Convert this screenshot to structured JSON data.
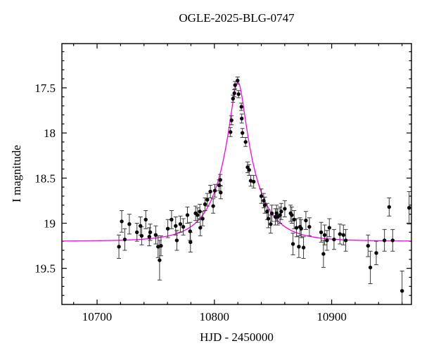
{
  "chart_data": {
    "type": "scatter",
    "title": "OGLE-2025-BLG-0747",
    "xlabel": "HJD - 2450000",
    "ylabel": "I magnitude",
    "x_range": [
      10670,
      10968
    ],
    "y_range_mag": [
      19.9,
      17.01
    ],
    "y_axis_inverted": true,
    "x_major_ticks": [
      10700,
      10800,
      10900
    ],
    "x_minor_tick_step": 20,
    "y_major_ticks": [
      17.5,
      18,
      18.5,
      19,
      19.5
    ],
    "y_minor_tick_step": 0.1,
    "grid": "off",
    "legend": "none",
    "colors": {
      "background": "#ffffff",
      "axes": "#000000",
      "data_points": "#0a0a0a",
      "error_bars": "#3c3c3c",
      "model_curve": "#ff00ee"
    },
    "model_curve": {
      "kind": "paczynski_microlensing",
      "t0": 10820,
      "tE_days": 29,
      "u0": 0.2,
      "baseline_mag": 19.2,
      "peak_mag": 17.42
    },
    "points_format": [
      "hjd_minus_2450000",
      "i_magnitude",
      "mag_error"
    ],
    "points": [
      [
        10718.6,
        19.26,
        0.13
      ],
      [
        10721,
        18.98,
        0.12
      ],
      [
        10723.6,
        19.18,
        0.12
      ],
      [
        10727.5,
        19.01,
        0.11
      ],
      [
        10734,
        19.1,
        0.1
      ],
      [
        10737,
        19.03,
        0.1
      ],
      [
        10738,
        19.14,
        0.1
      ],
      [
        10741.5,
        18.96,
        0.1
      ],
      [
        10744.5,
        19.15,
        0.1
      ],
      [
        10745.3,
        19.1,
        0.09
      ],
      [
        10750,
        19.13,
        0.1
      ],
      [
        10752,
        19.26,
        0.12
      ],
      [
        10753.3,
        19.41,
        0.22
      ],
      [
        10754.5,
        19.25,
        0.11
      ],
      [
        10760.3,
        19.06,
        0.1
      ],
      [
        10763.5,
        18.96,
        0.1
      ],
      [
        10767,
        19.03,
        0.1
      ],
      [
        10768,
        19.19,
        0.11
      ],
      [
        10771,
        19.01,
        0.09
      ],
      [
        10773.5,
        19.04,
        0.09
      ],
      [
        10777,
        18.91,
        0.09
      ],
      [
        10779.3,
        19.09,
        0.1
      ],
      [
        10779.6,
        19.21,
        0.11
      ],
      [
        10784,
        18.89,
        0.08
      ],
      [
        10785.6,
        18.91,
        0.08
      ],
      [
        10787.6,
        18.87,
        0.08
      ],
      [
        10788,
        19.05,
        0.09
      ],
      [
        10790,
        18.95,
        0.08
      ],
      [
        10792,
        18.79,
        0.07
      ],
      [
        10794,
        18.74,
        0.07
      ],
      [
        10796.6,
        18.65,
        0.07
      ],
      [
        10799,
        18.81,
        0.08
      ],
      [
        10800.4,
        18.64,
        0.07
      ],
      [
        10804,
        18.58,
        0.06
      ],
      [
        10805,
        18.52,
        0.06
      ],
      [
        10805.4,
        18.66,
        0.07
      ],
      [
        10813.7,
        17.99,
        0.05
      ],
      [
        10814.6,
        17.86,
        0.05
      ],
      [
        10815.9,
        17.62,
        0.04
      ],
      [
        10817,
        17.56,
        0.04
      ],
      [
        10817.6,
        17.47,
        0.04
      ],
      [
        10819.8,
        17.42,
        0.04
      ],
      [
        10820.6,
        17.57,
        0.04
      ],
      [
        10823,
        17.71,
        0.04
      ],
      [
        10823.3,
        17.84,
        0.05
      ],
      [
        10823.9,
        18.0,
        0.05
      ],
      [
        10826.6,
        18.1,
        0.05
      ],
      [
        10828.3,
        18.38,
        0.06
      ],
      [
        10829.6,
        18.41,
        0.06
      ],
      [
        10831,
        18.53,
        0.06
      ],
      [
        10833.5,
        18.54,
        0.07
      ],
      [
        10840,
        18.7,
        0.08
      ],
      [
        10842,
        18.75,
        0.08
      ],
      [
        10843,
        18.8,
        0.09
      ],
      [
        10845,
        18.87,
        0.09
      ],
      [
        10846,
        18.95,
        0.1
      ],
      [
        10848,
        19.01,
        0.1
      ],
      [
        10849,
        18.89,
        0.09
      ],
      [
        10852,
        18.93,
        0.09
      ],
      [
        10853,
        18.89,
        0.09
      ],
      [
        10854,
        18.93,
        0.09
      ],
      [
        10856,
        18.91,
        0.09
      ],
      [
        10857,
        18.87,
        0.09
      ],
      [
        10860,
        18.84,
        0.09
      ],
      [
        10865,
        18.89,
        0.09
      ],
      [
        10866,
        18.91,
        0.09
      ],
      [
        10867,
        19.23,
        0.12
      ],
      [
        10868,
        18.96,
        0.1
      ],
      [
        10870,
        19.05,
        0.1
      ],
      [
        10872,
        19.26,
        0.12
      ],
      [
        10873,
        19.04,
        0.1
      ],
      [
        10874,
        19.06,
        0.1
      ],
      [
        10876,
        19.27,
        0.12
      ],
      [
        10878,
        18.97,
        0.1
      ],
      [
        10881,
        19.04,
        0.1
      ],
      [
        10891,
        19.1,
        0.11
      ],
      [
        10893,
        19.34,
        0.15
      ],
      [
        10894,
        19.13,
        0.11
      ],
      [
        10896,
        19.19,
        0.11
      ],
      [
        10898,
        19.05,
        0.1
      ],
      [
        10902,
        19.18,
        0.11
      ],
      [
        10907,
        19.12,
        0.11
      ],
      [
        10910,
        19.13,
        0.11
      ],
      [
        10912,
        19.19,
        0.12
      ],
      [
        10931,
        19.25,
        0.12
      ],
      [
        10933,
        19.49,
        0.18
      ],
      [
        10938,
        19.33,
        0.13
      ],
      [
        10945,
        19.19,
        0.12
      ],
      [
        10949,
        18.82,
        0.1
      ],
      [
        10952,
        19.19,
        0.12
      ],
      [
        10960,
        19.75,
        0.22
      ],
      [
        10966,
        18.83,
        0.18
      ]
    ]
  }
}
